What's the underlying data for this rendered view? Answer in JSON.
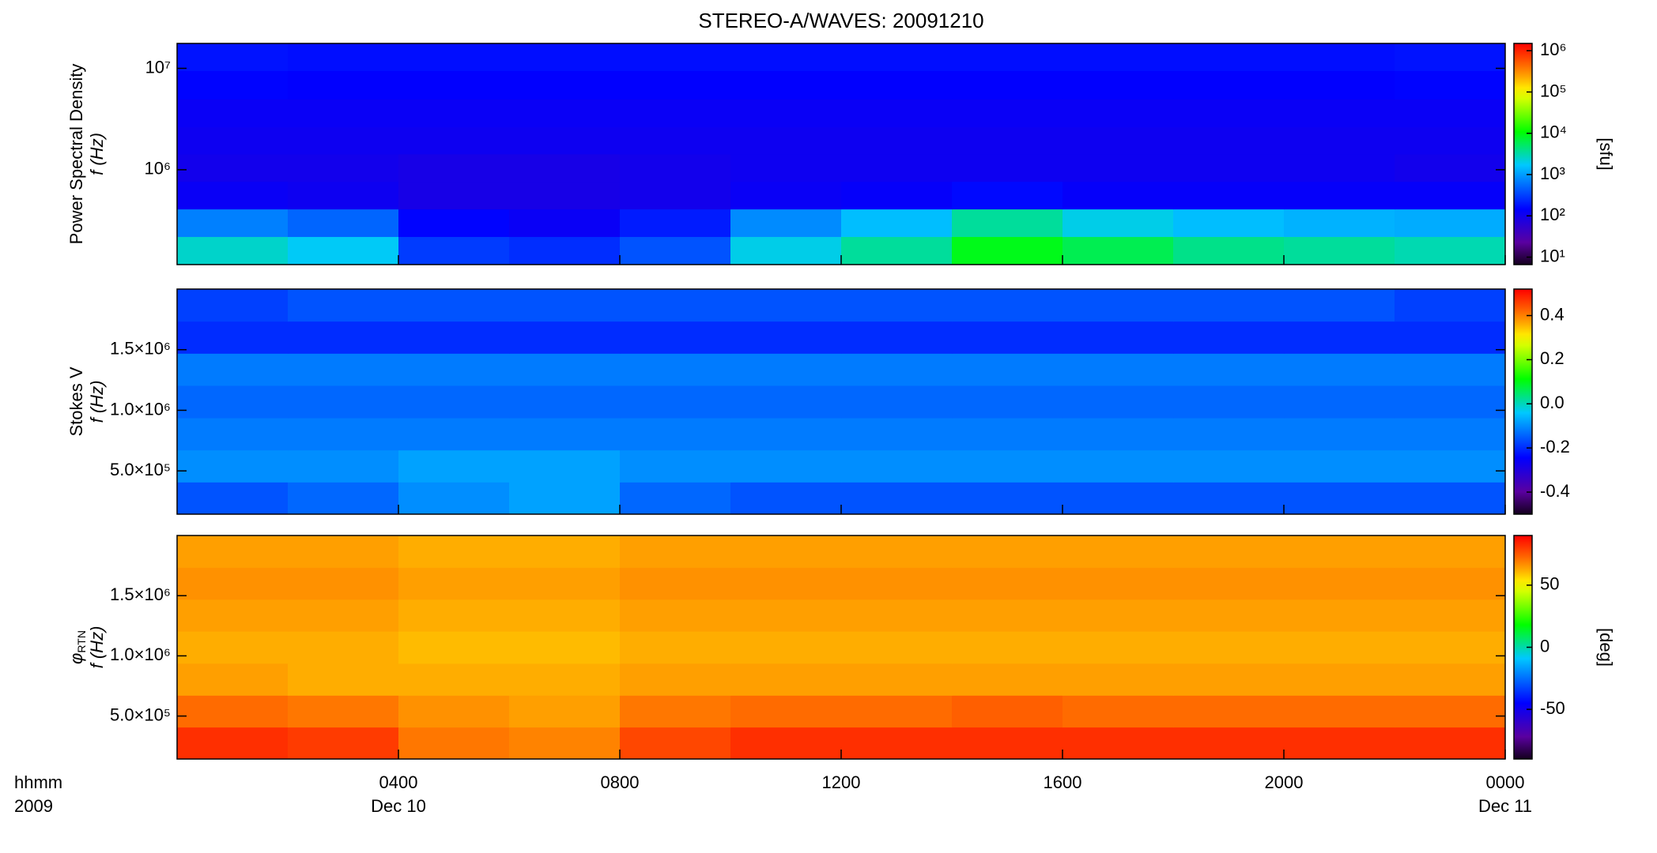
{
  "chart_data": [
    {
      "type": "heatmap",
      "title": "STEREO-A/WAVES: 20091210",
      "ylabel": "Power Spectral Density",
      "ylabel2": "f (Hz)",
      "x": [
        1,
        3,
        5,
        7,
        9,
        11,
        13,
        15,
        17,
        19,
        21,
        23
      ],
      "xlim": [
        0,
        24
      ],
      "y": [
        160000,
        300000,
        560000,
        1050000,
        1950000,
        3600000,
        6900000,
        13000000
      ],
      "ylim": [
        116000,
        17600000
      ],
      "ylog": true,
      "yticks": [
        {
          "value": 1000000,
          "label": "10⁶"
        },
        {
          "value": 10000000,
          "label": "10⁷"
        }
      ],
      "z": [
        [
          2500,
          1800,
          300,
          250,
          400,
          2000,
          3500,
          9000,
          6000,
          4000,
          3500,
          3000
        ],
        [
          700,
          500,
          150,
          120,
          200,
          800,
          1500,
          3500,
          2000,
          1500,
          1300,
          1200
        ],
        [
          120,
          110,
          90,
          90,
          100,
          120,
          130,
          160,
          130,
          130,
          130,
          130
        ],
        [
          100,
          100,
          90,
          90,
          100,
          110,
          110,
          110,
          110,
          110,
          110,
          100
        ],
        [
          110,
          110,
          110,
          110,
          110,
          110,
          110,
          110,
          110,
          110,
          110,
          110
        ],
        [
          120,
          120,
          120,
          120,
          120,
          120,
          120,
          120,
          120,
          120,
          120,
          120
        ],
        [
          150,
          140,
          140,
          140,
          140,
          140,
          140,
          140,
          140,
          140,
          140,
          150
        ],
        [
          180,
          170,
          170,
          170,
          170,
          170,
          170,
          170,
          170,
          170,
          170,
          180
        ]
      ],
      "colormap": "rainbow",
      "colorbar": {
        "lim": [
          6.6,
          1500000
        ],
        "log": true,
        "label": "[sfu]",
        "ticks": [
          {
            "value": 10,
            "label": "10¹"
          },
          {
            "value": 100,
            "label": "10²"
          },
          {
            "value": 1000,
            "label": "10³"
          },
          {
            "value": 10000,
            "label": "10⁴"
          },
          {
            "value": 100000,
            "label": "10⁵"
          },
          {
            "value": 1000000,
            "label": "10⁶"
          }
        ]
      }
    },
    {
      "type": "heatmap",
      "ylabel": "Stokes V",
      "ylabel2": "f (Hz)",
      "x": [
        1,
        3,
        5,
        7,
        9,
        11,
        13,
        15,
        17,
        19,
        21,
        23
      ],
      "xlim": [
        0,
        24
      ],
      "y": [
        276000,
        540000,
        805000,
        1070000,
        1340000,
        1600000,
        1870000
      ],
      "ylim": [
        143000,
        2000000
      ],
      "yticks": [
        {
          "value": 500000,
          "label": "5.0×10⁵"
        },
        {
          "value": 1000000,
          "label": "1.0×10⁶"
        },
        {
          "value": 1500000,
          "label": "1.5×10⁶"
        }
      ],
      "z": [
        [
          -0.16,
          -0.14,
          -0.1,
          -0.08,
          -0.14,
          -0.16,
          -0.16,
          -0.16,
          -0.16,
          -0.16,
          -0.16,
          -0.16
        ],
        [
          -0.1,
          -0.1,
          -0.08,
          -0.08,
          -0.1,
          -0.1,
          -0.1,
          -0.1,
          -0.1,
          -0.1,
          -0.1,
          -0.1
        ],
        [
          -0.12,
          -0.12,
          -0.12,
          -0.12,
          -0.12,
          -0.12,
          -0.12,
          -0.12,
          -0.12,
          -0.12,
          -0.12,
          -0.12
        ],
        [
          -0.14,
          -0.14,
          -0.14,
          -0.14,
          -0.14,
          -0.14,
          -0.14,
          -0.14,
          -0.14,
          -0.14,
          -0.14,
          -0.14
        ],
        [
          -0.12,
          -0.12,
          -0.12,
          -0.12,
          -0.12,
          -0.12,
          -0.12,
          -0.12,
          -0.12,
          -0.12,
          -0.12,
          -0.12
        ],
        [
          -0.2,
          -0.2,
          -0.2,
          -0.2,
          -0.2,
          -0.2,
          -0.2,
          -0.2,
          -0.2,
          -0.2,
          -0.2,
          -0.2
        ],
        [
          -0.18,
          -0.16,
          -0.16,
          -0.16,
          -0.16,
          -0.16,
          -0.16,
          -0.16,
          -0.16,
          -0.16,
          -0.16,
          -0.18
        ]
      ],
      "colormap": "rainbow",
      "colorbar": {
        "lim": [
          -0.5,
          0.52
        ],
        "ticks": [
          -0.4,
          -0.2,
          {
            "value": 0,
            "label": "0.0"
          },
          0.2,
          0.4
        ]
      }
    },
    {
      "type": "heatmap",
      "ylabel_symbol": "φ",
      "ylabel_subscript": "RTN",
      "ylabel2": "f (Hz)",
      "x": [
        1,
        3,
        5,
        7,
        9,
        11,
        13,
        15,
        17,
        19,
        21,
        23
      ],
      "xlim": [
        0,
        24
      ],
      "y": [
        276000,
        540000,
        805000,
        1070000,
        1340000,
        1600000,
        1870000
      ],
      "ylim": [
        143000,
        2000000
      ],
      "yticks": [
        {
          "value": 500000,
          "label": "5.0×10⁵"
        },
        {
          "value": 1000000,
          "label": "1.0×10⁶"
        },
        {
          "value": 1500000,
          "label": "1.5×10⁶"
        }
      ],
      "z": [
        [
          82,
          80,
          70,
          68,
          78,
          82,
          82,
          82,
          82,
          82,
          82,
          82
        ],
        [
          72,
          70,
          66,
          64,
          70,
          72,
          72,
          74,
          72,
          72,
          72,
          72
        ],
        [
          64,
          62,
          62,
          62,
          64,
          64,
          64,
          64,
          64,
          64,
          64,
          64
        ],
        [
          62,
          62,
          60,
          60,
          62,
          62,
          62,
          62,
          62,
          62,
          62,
          62
        ],
        [
          64,
          64,
          62,
          62,
          64,
          64,
          64,
          64,
          64,
          64,
          64,
          64
        ],
        [
          66,
          66,
          64,
          64,
          66,
          66,
          66,
          66,
          66,
          66,
          66,
          66
        ],
        [
          64,
          64,
          62,
          62,
          64,
          64,
          64,
          64,
          64,
          64,
          64,
          64
        ]
      ],
      "colormap": "rainbow",
      "colorbar": {
        "lim": [
          -90,
          90
        ],
        "label": "[deg]",
        "ticks": [
          -50,
          0,
          50
        ]
      },
      "xticks": [
        {
          "value": 4,
          "label": "0400"
        },
        {
          "value": 8,
          "label": "0800"
        },
        {
          "value": 12,
          "label": "1200"
        },
        {
          "value": 16,
          "label": "1600"
        },
        {
          "value": 20,
          "label": "2000"
        },
        {
          "value": 24,
          "label": "0000"
        }
      ],
      "date_labels": [
        {
          "value": 4,
          "label": "Dec 10"
        },
        {
          "value": 24,
          "label": "Dec 11"
        }
      ],
      "xlabel": "hhmm",
      "xlabel2": "2009"
    }
  ]
}
